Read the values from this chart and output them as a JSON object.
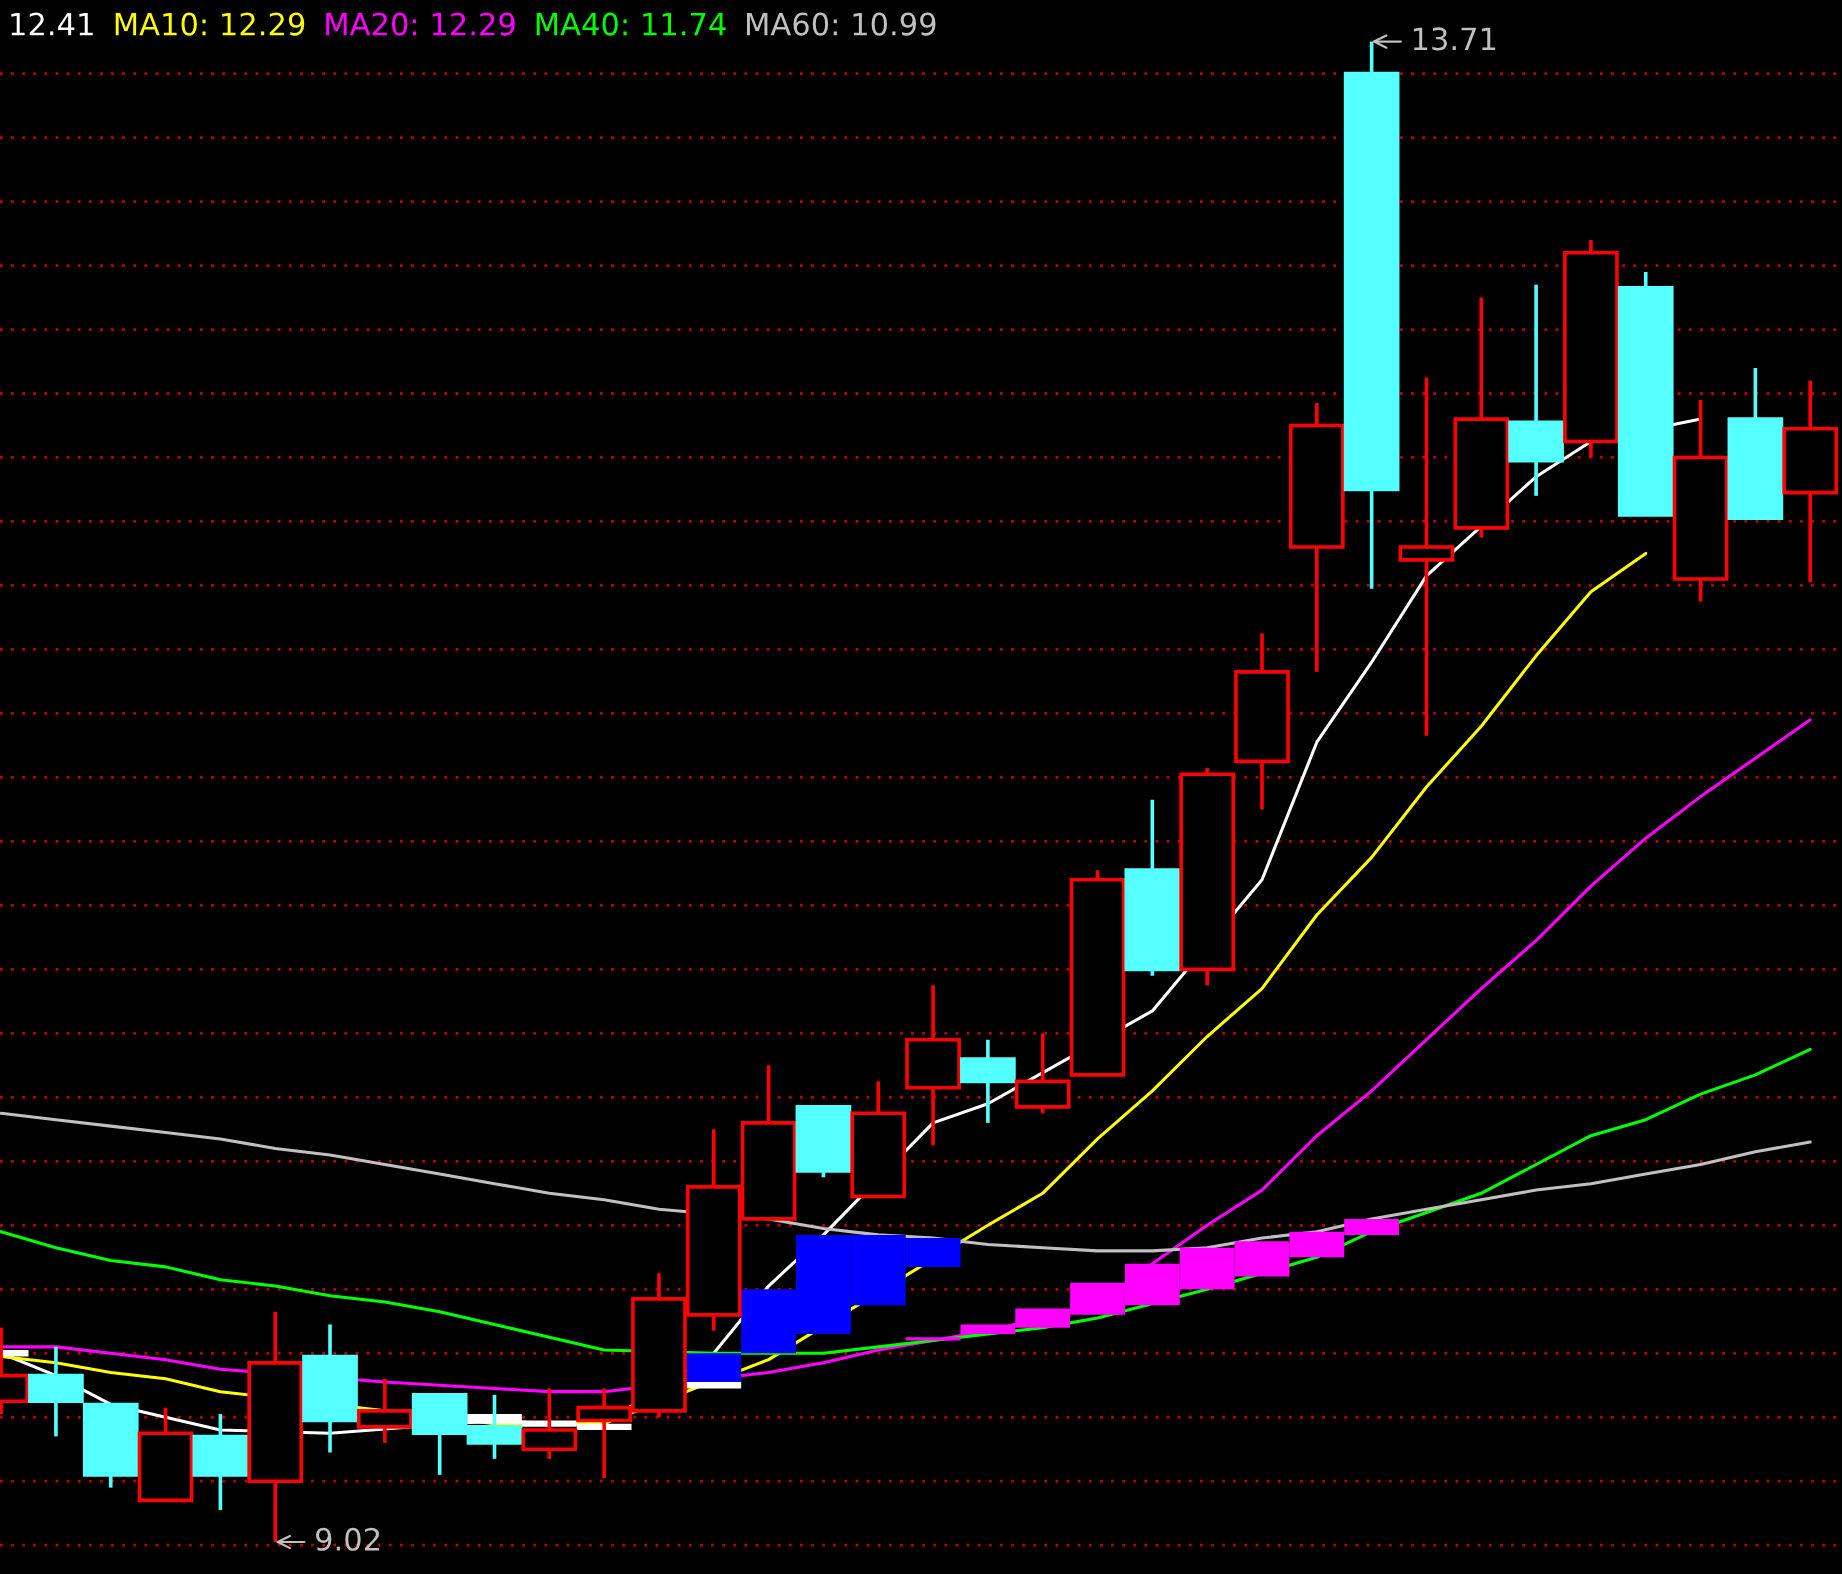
{
  "chart_data": {
    "type": "candlestick",
    "categories": [
      null,
      null,
      null,
      null,
      null,
      null,
      null,
      null,
      null,
      null,
      null,
      null,
      null,
      null,
      null,
      null,
      null,
      null,
      null,
      null,
      null,
      null,
      null,
      null,
      null,
      null,
      null,
      null,
      null,
      null,
      null,
      null,
      null,
      null
    ],
    "ohlc": [
      [
        9.46,
        9.69,
        9.42,
        9.54
      ],
      [
        9.54,
        9.63,
        9.35,
        9.46
      ],
      [
        9.45,
        9.45,
        9.19,
        9.23
      ],
      [
        9.15,
        9.44,
        9.15,
        9.36
      ],
      [
        9.35,
        9.42,
        9.12,
        9.23
      ],
      [
        9.21,
        9.74,
        9.02,
        9.58
      ],
      [
        9.6,
        9.7,
        9.3,
        9.4
      ],
      [
        9.38,
        9.53,
        9.33,
        9.43
      ],
      [
        9.48,
        9.48,
        9.23,
        9.36
      ],
      [
        9.38,
        9.48,
        9.28,
        9.33
      ],
      [
        9.31,
        9.5,
        9.28,
        9.37
      ],
      [
        9.4,
        9.5,
        9.22,
        9.44
      ],
      [
        9.43,
        9.86,
        9.41,
        9.78
      ],
      [
        9.73,
        10.31,
        9.68,
        10.13
      ],
      [
        10.03,
        10.51,
        10.03,
        10.33
      ],
      [
        10.38,
        10.38,
        10.16,
        10.18
      ],
      [
        10.1,
        10.46,
        10.1,
        10.36
      ],
      [
        10.44,
        10.76,
        10.26,
        10.59
      ],
      [
        10.53,
        10.59,
        10.33,
        10.46
      ],
      [
        10.38,
        10.61,
        10.36,
        10.46
      ],
      [
        10.48,
        11.12,
        10.48,
        11.09
      ],
      [
        11.12,
        11.34,
        10.79,
        10.81
      ],
      [
        10.81,
        11.44,
        10.76,
        11.42
      ],
      [
        11.46,
        11.86,
        11.31,
        11.74
      ],
      [
        12.13,
        12.58,
        11.74,
        12.51
      ],
      [
        13.61,
        13.71,
        12.0,
        12.31
      ],
      [
        12.09,
        12.66,
        11.54,
        12.13
      ],
      [
        12.19,
        12.91,
        12.16,
        12.53
      ],
      [
        12.52,
        12.95,
        12.29,
        12.4
      ],
      [
        12.46,
        13.09,
        12.41,
        13.05
      ],
      [
        12.94,
        12.99,
        12.23,
        12.23
      ],
      [
        12.03,
        12.59,
        11.96,
        12.41
      ],
      [
        12.53,
        12.69,
        12.22,
        12.22
      ],
      [
        12.3,
        12.65,
        12.02,
        12.5
      ]
    ],
    "colors": [
      "#ff0000",
      "#54ffff",
      "#54ffff",
      "#ff0000",
      "#54ffff",
      "#ff0000",
      "#54ffff",
      "#ff0000",
      "#54ffff",
      "#54ffff",
      "#ff0000",
      "#ff0000",
      "#ff0000",
      "#ff0000",
      "#ff0000",
      "#54ffff",
      "#ff0000",
      "#ff0000",
      "#54ffff",
      "#ff0000",
      "#ff0000",
      "#54ffff",
      "#ff0000",
      "#ff0000",
      "#ff0000",
      "#54ffff",
      "#ff0000",
      "#ff0000",
      "#54ffff",
      "#ff0000",
      "#54ffff",
      "#ff0000",
      "#54ffff",
      "#ff0000"
    ],
    "series": [
      {
        "type": "line",
        "color": "#ffffff",
        "values": [
          9.61,
          9.54,
          9.45,
          9.41,
          9.37,
          null,
          9.36,
          null,
          null,
          9.4,
          9.39,
          9.39,
          null,
          9.61,
          9.82,
          9.98,
          null,
          10.33,
          10.39,
          null,
          null,
          10.68,
          null,
          11.09,
          11.52,
          11.77,
          12.04,
          null,
          12.35,
          12.46,
          null,
          12.53,
          null,
          null
        ]
      },
      {
        "type": "line",
        "color": "#ffff00",
        "values": [
          9.6,
          9.58,
          9.55,
          9.53,
          9.49,
          null,
          null,
          9.43,
          null,
          9.39,
          null,
          9.39,
          null,
          null,
          9.59,
          null,
          null,
          null,
          10.01,
          10.11,
          10.28,
          10.43,
          10.6,
          10.75,
          10.98,
          11.16,
          11.38,
          11.57,
          11.79,
          11.99,
          12.11,
          null,
          null,
          null
        ]
      },
      {
        "type": "line",
        "color": "#ff00ff",
        "values": [
          9.63,
          9.63,
          9.61,
          9.59,
          9.56,
          null,
          null,
          9.52,
          9.51,
          9.5,
          9.49,
          9.49,
          null,
          null,
          9.55,
          9.58,
          9.62,
          9.65,
          9.68,
          9.72,
          9.76,
          9.89,
          10.01,
          10.12,
          10.29,
          10.43,
          10.59,
          10.75,
          10.9,
          11.07,
          11.22,
          11.35,
          11.47,
          11.59
        ]
      },
      {
        "type": "line",
        "color": "#00ff00",
        "values": [
          9.99,
          9.94,
          9.9,
          9.88,
          9.84,
          9.82,
          9.79,
          9.77,
          9.74,
          9.7,
          9.66,
          9.62,
          null,
          9.61,
          9.61,
          9.61,
          9.63,
          9.65,
          null,
          9.69,
          9.72,
          null,
          9.81,
          null,
          9.91,
          9.99,
          10.05,
          10.11,
          10.2,
          10.29,
          10.34,
          10.42,
          10.48,
          10.56
        ]
      },
      {
        "type": "line",
        "color": "#c0c0c0",
        "values": [
          10.36,
          10.34,
          10.32,
          10.3,
          10.28,
          10.25,
          10.23,
          10.2,
          10.17,
          10.14,
          10.11,
          10.09,
          10.06,
          null,
          10.03,
          10.0,
          9.98,
          9.97,
          9.95,
          9.94,
          9.93,
          9.93,
          9.94,
          9.97,
          9.99,
          10.03,
          10.06,
          10.09,
          10.12,
          10.14,
          10.17,
          10.2,
          10.24,
          10.27
        ]
      },
      {
        "type": "bar",
        "color": "#0000ff",
        "base": [
          null,
          null,
          null,
          null,
          null,
          null,
          null,
          null,
          null,
          null,
          null,
          null,
          null,
          9.52,
          9.61,
          9.67,
          9.76,
          9.88,
          null,
          null,
          null,
          null,
          null,
          null,
          null,
          null,
          null,
          null,
          null,
          null,
          null,
          null,
          null,
          null
        ],
        "values": [
          null,
          null,
          null,
          null,
          null,
          null,
          null,
          null,
          null,
          null,
          null,
          null,
          null,
          0.09,
          0.2,
          0.31,
          0.22,
          0.09,
          null,
          null,
          null,
          null,
          null,
          null,
          null,
          null,
          null,
          null,
          null,
          null,
          null,
          null,
          null,
          null
        ]
      },
      {
        "type": "bar",
        "color": "#ffffff",
        "base": [
          9.6,
          null,
          null,
          null,
          null,
          null,
          null,
          null,
          null,
          9.39,
          9.38,
          9.37,
          null,
          9.5,
          null,
          null,
          null,
          null,
          null,
          null,
          null,
          null,
          null,
          null,
          null,
          null,
          null,
          null,
          null,
          null,
          null,
          null,
          null,
          null
        ],
        "values": [
          0.02,
          null,
          null,
          null,
          null,
          null,
          null,
          null,
          null,
          0.03,
          0.02,
          0.02,
          null,
          0.02,
          null,
          null,
          null,
          null,
          null,
          null,
          null,
          null,
          null,
          null,
          null,
          null,
          null,
          null,
          null,
          null,
          null,
          null,
          null,
          null
        ]
      },
      {
        "type": "bar",
        "color": "#ff00ff",
        "base": [
          null,
          null,
          null,
          null,
          null,
          null,
          null,
          null,
          null,
          null,
          null,
          null,
          null,
          null,
          null,
          null,
          null,
          9.65,
          9.67,
          9.69,
          9.73,
          9.76,
          9.81,
          9.85,
          9.91,
          9.98,
          null,
          null,
          null,
          null,
          null,
          null,
          null,
          null
        ],
        "values": [
          null,
          null,
          null,
          null,
          null,
          null,
          null,
          null,
          null,
          null,
          null,
          null,
          null,
          null,
          null,
          null,
          null,
          0.01,
          0.03,
          0.06,
          0.1,
          0.13,
          0.13,
          0.11,
          0.08,
          0.05,
          null,
          null,
          null,
          null,
          null,
          null,
          null,
          null
        ]
      }
    ],
    "ylim": [
      8.92,
      13.84
    ],
    "yticks": [
      {
        "value": 13.61,
        "label": null
      },
      {
        "value": 13.41,
        "label": null
      },
      {
        "value": 13.21,
        "label": null
      },
      {
        "value": 13.01,
        "label": null
      },
      {
        "value": 12.81,
        "label": null
      },
      {
        "value": 12.61,
        "label": null
      },
      {
        "value": 12.41,
        "label": null
      },
      {
        "value": 12.21,
        "label": null
      },
      {
        "value": 12.01,
        "label": null
      },
      {
        "value": 11.81,
        "label": null
      },
      {
        "value": 11.61,
        "label": null
      },
      {
        "value": 11.41,
        "label": null
      },
      {
        "value": 11.21,
        "label": null
      },
      {
        "value": 11.01,
        "label": null
      },
      {
        "value": 10.81,
        "label": null
      },
      {
        "value": 10.61,
        "label": null
      },
      {
        "value": 10.41,
        "label": null
      },
      {
        "value": 10.21,
        "label": null
      },
      {
        "value": 10.01,
        "label": null
      },
      {
        "value": 9.81,
        "label": null
      },
      {
        "value": 9.61,
        "label": null
      },
      {
        "value": 9.41,
        "label": null
      },
      {
        "value": 9.21,
        "label": null
      },
      {
        "value": 9.01,
        "label": null
      }
    ],
    "grid": "y",
    "annotations": [
      "12.41",
      "MA10: 12.29",
      "MA20: 12.29",
      "MA40: 11.74",
      "MA60: 10.99",
      "13.71",
      "9.02"
    ]
  }
}
